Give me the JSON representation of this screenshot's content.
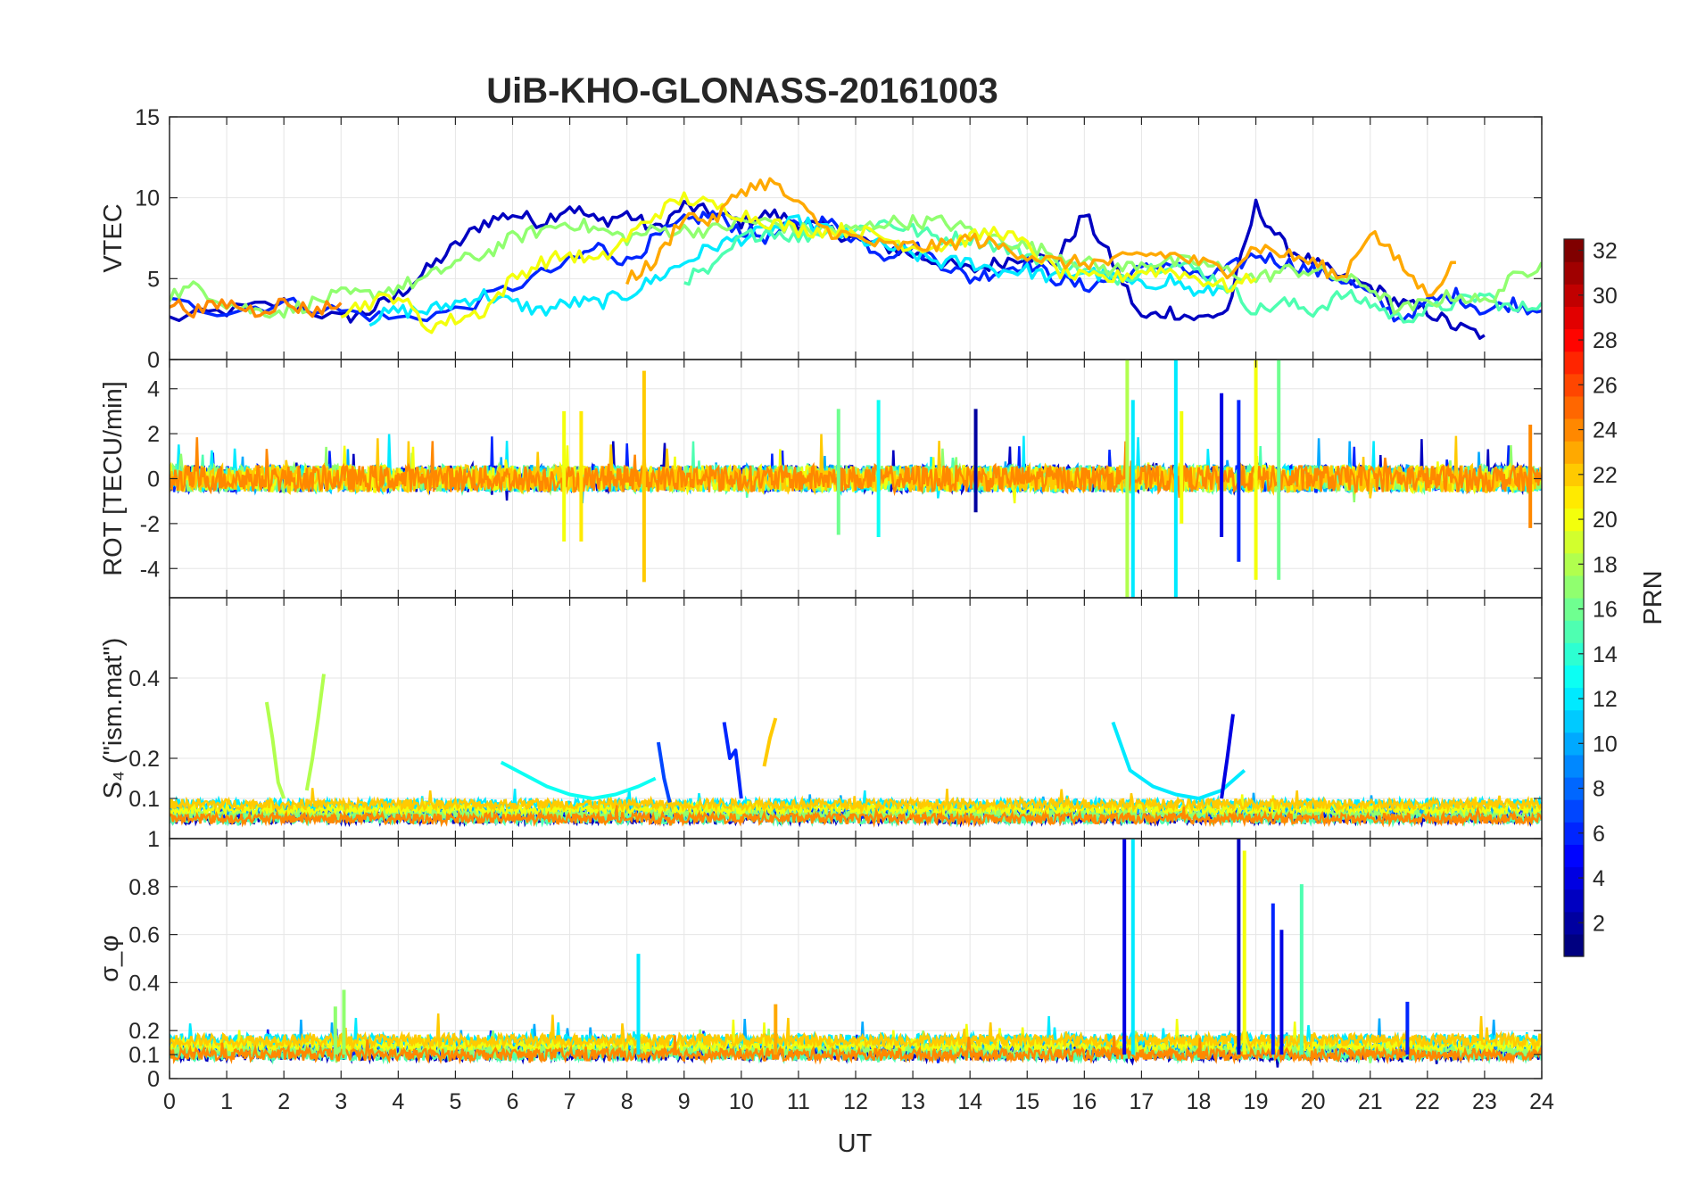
{
  "chart_data": {
    "type": "line",
    "title": "UiB-KHO-GLONASS-20161003",
    "xlabel": "UT",
    "xlim": [
      0,
      24
    ],
    "xticks": [
      "0",
      "1",
      "2",
      "3",
      "4",
      "5",
      "6",
      "7",
      "8",
      "9",
      "10",
      "11",
      "12",
      "13",
      "14",
      "15",
      "16",
      "17",
      "18",
      "19",
      "20",
      "21",
      "22",
      "23",
      "24"
    ],
    "grid": true,
    "colormap": "jet",
    "colorbar": {
      "label": "PRN",
      "range": [
        1,
        32
      ],
      "ticks": [
        "2",
        "4",
        "6",
        "8",
        "10",
        "12",
        "14",
        "16",
        "18",
        "20",
        "22",
        "24",
        "26",
        "28",
        "30",
        "32"
      ],
      "placement": "right"
    },
    "panels": [
      {
        "ylabel": "VTEC",
        "ylim": [
          0,
          15
        ],
        "yticks": [
          "0",
          "5",
          "10",
          "15"
        ],
        "series": [
          {
            "prn": 3,
            "x": [
              0,
              1,
              2,
              3,
              3.5,
              4,
              4.5,
              5,
              5.5,
              6,
              6.5,
              7,
              7.5,
              8,
              8.5,
              9,
              9.5,
              10,
              10.5,
              11,
              11.5,
              12,
              12.5,
              13,
              13.5,
              14,
              14.5,
              15,
              15.5,
              16,
              16.5,
              17,
              17.5,
              18,
              18.5,
              19,
              19.5,
              20,
              20.5,
              21,
              21.5,
              22,
              22.5,
              23
            ],
            "y": [
              2.5,
              3,
              3.5,
              2.5,
              3,
              4,
              5.5,
              7,
              8.5,
              9,
              8.5,
              9.5,
              8.5,
              9,
              8,
              9.5,
              9,
              8.5,
              9,
              8.5,
              8,
              7.5,
              7,
              6.5,
              6,
              5.5,
              6,
              6.5,
              6,
              9,
              6,
              2.5,
              3,
              2.5,
              3,
              9.5,
              7,
              6,
              5,
              4.5,
              3.5,
              3,
              2,
              1.5
            ]
          },
          {
            "prn": 6,
            "x": [
              0,
              1,
              2,
              3,
              4,
              5,
              6,
              7,
              7.5,
              8,
              8.5,
              9,
              9.5,
              10,
              10.5,
              11,
              11.5,
              12,
              12.5,
              13,
              13.5,
              14,
              14.5,
              15,
              15.5,
              16,
              16.5,
              17,
              17.5,
              18,
              18.5,
              19,
              19.5,
              20,
              20.5,
              21,
              21.5,
              22,
              22.5,
              23,
              23.5,
              24
            ],
            "y": [
              3.5,
              3,
              3.5,
              3,
              2.5,
              3,
              4.5,
              6,
              7,
              6,
              7.5,
              8.5,
              9,
              8,
              7.5,
              8.5,
              8.5,
              7.5,
              6.5,
              7,
              6,
              5,
              5.5,
              6,
              5,
              4.5,
              5,
              5.5,
              6,
              5,
              5.5,
              6.5,
              6,
              5.5,
              5,
              4,
              2.5,
              3.5,
              4,
              3,
              3.5,
              3
            ]
          },
          {
            "prn": 12,
            "x": [
              3.5,
              4,
              4.5,
              5,
              5.5,
              6,
              6.5,
              7,
              7.5,
              8,
              8.5,
              9,
              9.5,
              10,
              10.5,
              11,
              11.5,
              12,
              12.5,
              13,
              13.5,
              14,
              14.5,
              15,
              15.5,
              16,
              16.5,
              17,
              17.5,
              18,
              18.5
            ],
            "y": [
              2.5,
              3,
              3,
              3.5,
              4,
              3.5,
              3,
              3.5,
              3.5,
              4,
              5,
              6,
              7,
              7.5,
              8,
              8.5,
              8,
              7.5,
              7,
              6.5,
              6,
              6,
              5.5,
              5.5,
              5,
              5.5,
              5,
              4.5,
              5,
              4,
              4.5
            ]
          },
          {
            "prn": 15,
            "x": [
              9,
              9.5,
              10,
              10.5,
              11,
              11.5,
              12,
              12.5,
              13,
              13.5,
              14,
              14.5,
              15,
              15.5,
              16,
              16.5,
              17,
              17.5,
              18,
              18.5,
              19,
              19.5,
              20,
              20.5,
              21,
              21.5,
              22,
              22.5,
              23,
              23.5,
              24
            ],
            "y": [
              5,
              5.5,
              7.5,
              8,
              7.5,
              8,
              8,
              8.5,
              8,
              7.5,
              7.5,
              7,
              6.5,
              6,
              5.5,
              5,
              5.5,
              6,
              5.5,
              4.5,
              3,
              3.5,
              3,
              4,
              3.5,
              2.5,
              3,
              3.5,
              4,
              3,
              3.5
            ]
          },
          {
            "prn": 17,
            "x": [
              0,
              0.5,
              1,
              1.5,
              2,
              2.5,
              3,
              3.5,
              4,
              4.5,
              5,
              5.5,
              6,
              6.5,
              7,
              7.5,
              8,
              8.5,
              9,
              9.5,
              10,
              10.5,
              11,
              11.5,
              12,
              12.5,
              13,
              13.5,
              14,
              14.5,
              15,
              15.5,
              16,
              16.5,
              17,
              17.5,
              18,
              18.5,
              19,
              19.5,
              20,
              20.5,
              21,
              21.5,
              22,
              22.5,
              23,
              23.5,
              24
            ],
            "y": [
              4,
              4.5,
              3.5,
              3,
              3,
              3.5,
              4,
              4,
              4.5,
              5,
              6,
              6.5,
              7.5,
              8,
              8.5,
              8,
              7.5,
              8,
              8,
              8,
              8.5,
              8.5,
              8,
              8,
              8,
              8.5,
              8.5,
              8.5,
              8,
              7.5,
              7,
              6.5,
              6,
              5.5,
              6,
              6,
              6,
              5.5,
              5,
              5.5,
              5.5,
              5,
              4.5,
              3,
              3.5,
              4,
              3.5,
              5,
              6
            ]
          },
          {
            "prn": 20,
            "x": [
              3,
              3.5,
              4,
              4.5,
              5,
              5.5,
              6,
              6.5,
              7,
              7.5,
              8,
              8.5,
              9,
              9.5,
              10,
              10.5,
              11,
              11.5,
              12,
              12.5,
              13,
              13.5,
              14,
              14.5,
              15,
              15.5,
              16,
              16.5,
              17,
              17.5,
              18,
              18.5,
              19
            ],
            "y": [
              3,
              3.5,
              4,
              2,
              2.5,
              3,
              5,
              6,
              6.5,
              6,
              7.5,
              9,
              10,
              9.5,
              9,
              8.5,
              8,
              8,
              8,
              7.5,
              7,
              7,
              7.5,
              8,
              7,
              5.5,
              5,
              5,
              5.5,
              5.5,
              5,
              4.5,
              5
            ]
          },
          {
            "prn": 23,
            "x": [
              8,
              8.5,
              9,
              9.5,
              10,
              10.5,
              11,
              11.5,
              12,
              12.5,
              13,
              13.5,
              14,
              14.5,
              15,
              15.5,
              16,
              16.5,
              17,
              17.5,
              18,
              18.5,
              19,
              19.5,
              20,
              20.5,
              21,
              21.5,
              22,
              22.5
            ],
            "y": [
              5,
              6,
              9,
              8.5,
              10.5,
              11,
              9.5,
              8,
              7.5,
              7,
              7,
              7,
              7.5,
              7,
              6.5,
              6,
              6,
              6,
              6.5,
              6.5,
              6,
              5.5,
              7,
              6.5,
              6,
              5,
              8,
              6,
              4,
              6
            ]
          },
          {
            "prn": 24,
            "x": [
              0,
              0.5,
              1,
              1.5,
              2,
              2.5,
              3
            ],
            "y": [
              3.5,
              3,
              3.5,
              3,
              3.5,
              3,
              3.5
            ]
          }
        ]
      },
      {
        "ylabel": "ROT [TECU/min]",
        "ylim": [
          -5.3,
          5.3
        ],
        "yticks": [
          "-4",
          "-2",
          "0",
          "2",
          "4"
        ],
        "spikes": [
          {
            "prn": 20,
            "x": 6.9,
            "min": -2.8,
            "max": 3.0
          },
          {
            "prn": 21,
            "x": 7.2,
            "min": -2.8,
            "max": 3.0
          },
          {
            "prn": 22,
            "x": 8.3,
            "min": -4.6,
            "max": 4.8
          },
          {
            "prn": 13,
            "x": 12.4,
            "min": -2.6,
            "max": 3.5
          },
          {
            "prn": 16,
            "x": 11.7,
            "min": -2.5,
            "max": 3.1
          },
          {
            "prn": 2,
            "x": 14.1,
            "min": -1.5,
            "max": 3.1
          },
          {
            "prn": 18,
            "x": 16.75,
            "min": -5.3,
            "max": 5.3
          },
          {
            "prn": 12,
            "x": 16.85,
            "min": -5.3,
            "max": 3.5
          },
          {
            "prn": 12,
            "x": 17.6,
            "min": -5.3,
            "max": 5.3
          },
          {
            "prn": 20,
            "x": 17.7,
            "min": -2.0,
            "max": 3.0
          },
          {
            "prn": 4,
            "x": 18.4,
            "min": -2.6,
            "max": 3.8
          },
          {
            "prn": 6,
            "x": 18.7,
            "min": -3.7,
            "max": 3.5
          },
          {
            "prn": 20,
            "x": 19.0,
            "min": -4.5,
            "max": 5.3
          },
          {
            "prn": 16,
            "x": 19.4,
            "min": -4.5,
            "max": 5.3
          },
          {
            "prn": 24,
            "x": 23.8,
            "min": -2.2,
            "max": 2.4
          }
        ]
      },
      {
        "ylabel": "S₄ (\"ism.mat\")",
        "ylim": [
          0,
          0.6
        ],
        "yticks": [
          "0.1",
          "0.2",
          "0.4"
        ],
        "series": [
          {
            "prn": 18,
            "x": [
              1.7,
              1.8,
              1.9,
              2.0
            ],
            "y": [
              0.34,
              0.25,
              0.14,
              0.1
            ]
          },
          {
            "prn": 18,
            "x": [
              2.4,
              2.5,
              2.6,
              2.7
            ],
            "y": [
              0.12,
              0.2,
              0.3,
              0.41
            ]
          },
          {
            "prn": 13,
            "x": [
              5.8,
              6.2,
              6.6,
              7,
              7.4,
              7.8,
              8.2,
              8.5
            ],
            "y": [
              0.19,
              0.16,
              0.13,
              0.11,
              0.1,
              0.11,
              0.13,
              0.15
            ]
          },
          {
            "prn": 7,
            "x": [
              8.55,
              8.65,
              8.75
            ],
            "y": [
              0.24,
              0.15,
              0.09
            ]
          },
          {
            "prn": 6,
            "x": [
              9.7,
              9.8,
              9.9,
              10
            ],
            "y": [
              0.29,
              0.2,
              0.22,
              0.1
            ]
          },
          {
            "prn": 22,
            "x": [
              10.4,
              10.5,
              10.6
            ],
            "y": [
              0.18,
              0.25,
              0.3
            ]
          },
          {
            "prn": 12,
            "x": [
              16.5,
              16.8,
              17.2,
              17.6,
              18,
              18.4,
              18.8
            ],
            "y": [
              0.29,
              0.17,
              0.13,
              0.11,
              0.1,
              0.12,
              0.17
            ]
          },
          {
            "prn": 4,
            "x": [
              18.4,
              18.5,
              18.6
            ],
            "y": [
              0.1,
              0.2,
              0.31
            ]
          }
        ],
        "baseline": [
          0.04,
          0.09
        ]
      },
      {
        "ylabel": "σ_φ",
        "ylim": [
          0,
          1
        ],
        "yticks": [
          "0",
          "0.1",
          "0.2",
          "0.4",
          "0.6",
          "0.8",
          "1"
        ],
        "baseline": [
          0.08,
          0.2
        ],
        "spikes": [
          {
            "prn": 17,
            "x": 2.9,
            "max": 0.3
          },
          {
            "prn": 17,
            "x": 3.05,
            "max": 0.37
          },
          {
            "prn": 12,
            "x": 8.2,
            "max": 0.52
          },
          {
            "prn": 23,
            "x": 10.6,
            "max": 0.31
          },
          {
            "prn": 4,
            "x": 16.7,
            "max": 1.0
          },
          {
            "prn": 12,
            "x": 16.85,
            "max": 1.0
          },
          {
            "prn": 3,
            "x": 18.7,
            "max": 1.0
          },
          {
            "prn": 20,
            "x": 18.8,
            "max": 0.95
          },
          {
            "prn": 6,
            "x": 19.3,
            "max": 0.73
          },
          {
            "prn": 4,
            "x": 19.45,
            "max": 0.62
          },
          {
            "prn": 15,
            "x": 19.8,
            "max": 0.81
          },
          {
            "prn": 6,
            "x": 21.65,
            "max": 0.32
          }
        ]
      }
    ]
  }
}
